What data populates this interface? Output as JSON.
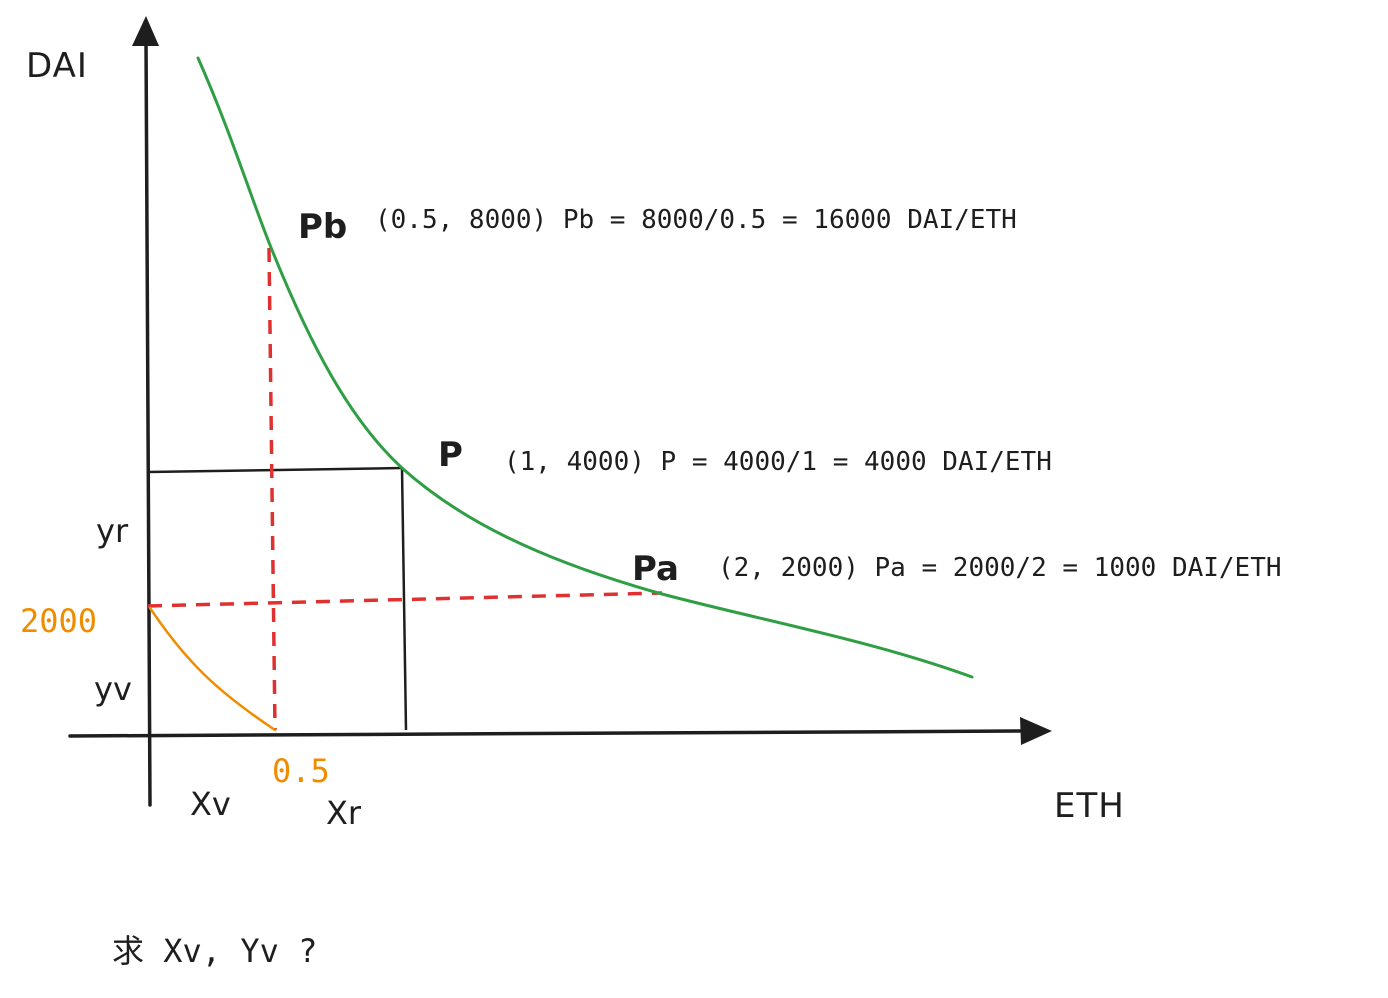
{
  "axes": {
    "y_label": "DAI",
    "x_label": "ETH"
  },
  "points": {
    "pb": {
      "label": "Pb",
      "note": "(0.5, 8000) Pb = 8000/0.5 = 16000 DAI/ETH"
    },
    "p": {
      "label": "P",
      "note": "(1, 4000) P = 4000/1 = 4000 DAI/ETH"
    },
    "pa": {
      "label": "Pa",
      "note": "(2, 2000) Pa = 2000/2 = 1000 DAI/ETH"
    }
  },
  "y_markers": {
    "yr": "yr",
    "yv": "yv",
    "value_2000": "2000"
  },
  "x_markers": {
    "xv": "Xv",
    "xr": "Xr",
    "value_05": "0.5"
  },
  "question": "求 Xv, Yv ?",
  "colors": {
    "axis": "#1e1e1e",
    "curve": "#2f9e44",
    "dashed": "#e03131",
    "virtual": "#f08c00",
    "text": "#1e1e1e"
  }
}
